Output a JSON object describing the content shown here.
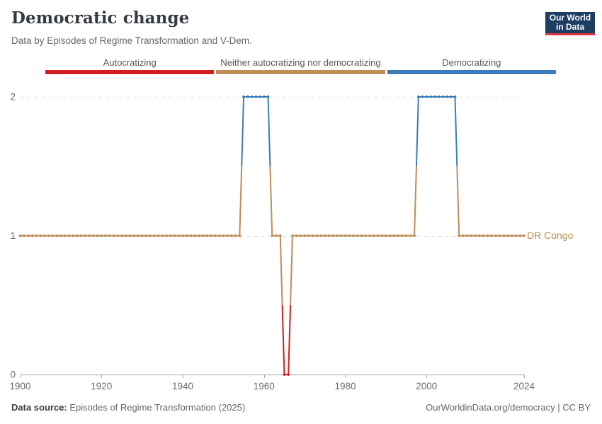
{
  "header": {
    "title": "Democratic change",
    "subtitle": "Data by Episodes of Regime Transformation and V-Dem."
  },
  "logo": {
    "line1": "Our World",
    "line2": "in Data",
    "bg_color": "#1d3d63",
    "accent_color": "#e0353c"
  },
  "legend": {
    "items": [
      {
        "label": "Autocratizing",
        "color": "#d21e1f",
        "value": 0
      },
      {
        "label": "Neither autocratizing nor democratizing",
        "color": "#bd8e56",
        "value": 1
      },
      {
        "label": "Democratizing",
        "color": "#3a7cb8",
        "value": 2
      }
    ]
  },
  "chart_data": {
    "type": "line",
    "title": "Democratic change",
    "entity": "DR Congo",
    "xlabel": "",
    "ylabel": "",
    "xlim": [
      1900,
      2024
    ],
    "ylim": [
      0,
      2
    ],
    "x_ticks": [
      1900,
      1920,
      1940,
      1960,
      1980,
      2000,
      2024
    ],
    "y_ticks": [
      0,
      1,
      2
    ],
    "grid": "dashed horizontal gridlines at y=1 and y=2; solid baseline at y=0",
    "value_meaning": {
      "0": "Autocratizing",
      "1": "Neither autocratizing nor democratizing",
      "2": "Democratizing"
    },
    "value_colors": {
      "0": "#d21e1f",
      "1": "#bd8e56",
      "2": "#3a7cb8"
    },
    "series": [
      {
        "name": "DR Congo",
        "segments": [
          {
            "from": 1900,
            "to": 1954,
            "value": 1
          },
          {
            "from": 1955,
            "to": 1961,
            "value": 2
          },
          {
            "from": 1962,
            "to": 1964,
            "value": 1
          },
          {
            "from": 1965,
            "to": 1966,
            "value": 0
          },
          {
            "from": 1967,
            "to": 1997,
            "value": 1
          },
          {
            "from": 1998,
            "to": 2007,
            "value": 2
          },
          {
            "from": 2008,
            "to": 2024,
            "value": 1
          }
        ]
      }
    ],
    "axis_text_color": "#6b6b6b",
    "axis_line_color": "#a4a4a4",
    "gridline_color": "#dddddd"
  },
  "footer": {
    "source_label": "Data source:",
    "source_text": " Episodes of Regime Transformation (2025)",
    "credit": "OurWorldinData.org/democracy | CC BY"
  }
}
